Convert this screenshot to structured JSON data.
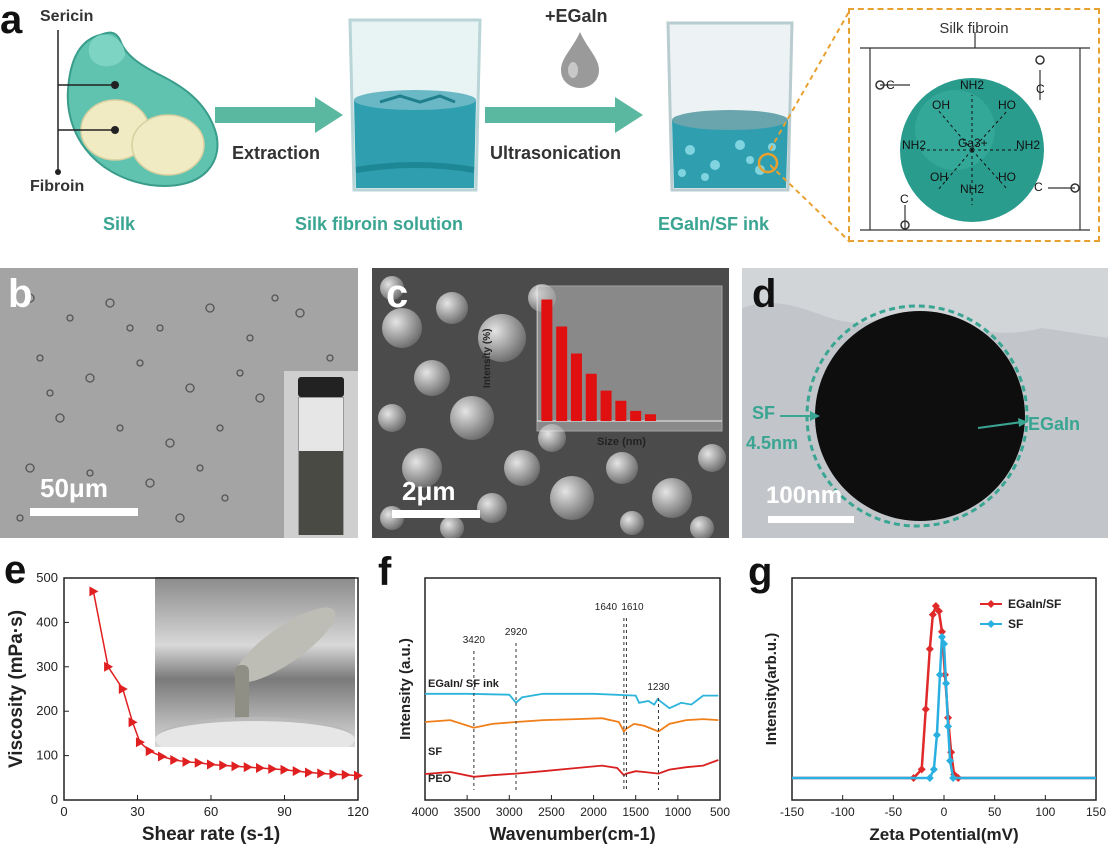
{
  "panel_a": {
    "label": "a",
    "silk_labels": {
      "sericin": "Sericin",
      "fibroin": "Fibroin",
      "silk": "Silk"
    },
    "steps": {
      "extraction": "Extraction",
      "ultrasonication": "Ultrasonication",
      "additive": "+EGaIn"
    },
    "captions": {
      "solution": "Silk fibroin solution",
      "ink": "EGaIn/SF ink"
    },
    "inset": {
      "title": "Silk fibroin",
      "groups": [
        "NH2",
        "OH",
        "HO",
        "NH2",
        "NH2",
        "OH",
        "NH2",
        "HO"
      ],
      "center": "Ga3+",
      "oxygen": "O",
      "carbon": "C"
    },
    "colors": {
      "teal": "#3aa592",
      "arrow": "#5ab7a0",
      "sphere": "#2a9c8d",
      "dash_orange": "#e8a030"
    }
  },
  "panel_b": {
    "label": "b",
    "scale": "50μm"
  },
  "panel_c": {
    "label": "c",
    "scale": "2μm",
    "inset_ylabel": "Intensity (%)",
    "inset_xlabel": "Size (nm)",
    "inset_bar_color": "#e01010"
  },
  "panel_d": {
    "label": "d",
    "scale": "100nm",
    "sf": "SF",
    "thickness": "4.5nm",
    "egain": "EGaIn"
  },
  "panel_e": {
    "label": "e"
  },
  "panel_f": {
    "label": "f",
    "legend": [
      "EGaIn/ SF ink",
      "SF",
      "PEO"
    ],
    "peaks": [
      "3420",
      "2920",
      "1640",
      "1610",
      "1230"
    ]
  },
  "panel_g": {
    "label": "g"
  },
  "chart_data": [
    {
      "type": "bar",
      "panel": "c-inset",
      "title": "",
      "xlabel": "Size (nm)",
      "ylabel": "Intensity (%)",
      "ylim": [
        0,
        40
      ],
      "xlim": [
        0,
        1500
      ],
      "x": [
        80,
        200,
        320,
        440,
        560,
        680,
        800,
        920
      ],
      "values": [
        36,
        28,
        20,
        14,
        9,
        6,
        3,
        2
      ]
    },
    {
      "type": "line",
      "panel": "e",
      "title": "",
      "xlabel": "Shear rate (s-1)",
      "ylabel": "Viscosity (mPa·s)",
      "xlim": [
        0,
        120
      ],
      "ylim": [
        0,
        500
      ],
      "xticks": [
        "0",
        "30",
        "60",
        "90",
        "120"
      ],
      "yticks": [
        "0",
        "100",
        "200",
        "300",
        "400",
        "500"
      ],
      "series": [
        {
          "marker": "triangle-right",
          "color": "#e02020",
          "x": [
            12,
            18,
            24,
            28,
            31,
            35,
            40,
            45,
            50,
            55,
            60,
            65,
            70,
            75,
            80,
            85,
            90,
            95,
            100,
            105,
            110,
            115,
            120
          ],
          "y": [
            470,
            300,
            250,
            175,
            130,
            110,
            98,
            90,
            86,
            84,
            80,
            78,
            76,
            74,
            72,
            70,
            68,
            65,
            62,
            60,
            58,
            57,
            55
          ]
        }
      ]
    },
    {
      "type": "line",
      "panel": "f",
      "title": "",
      "xlabel": "Wavenumber(cm-1)",
      "ylabel": "Intensity (a.u.)",
      "xlim": [
        4000,
        500
      ],
      "xticks": [
        "4000",
        "3500",
        "3000",
        "2500",
        "2000",
        "1500",
        "1000",
        "500"
      ],
      "series": [
        {
          "name": "EGaIn/ SF ink",
          "color": "#d92020",
          "x": [
            4000,
            3700,
            3420,
            3200,
            2920,
            2600,
            2200,
            1900,
            1720,
            1640,
            1610,
            1500,
            1400,
            1230,
            1100,
            900,
            700,
            520
          ],
          "y": [
            0.65,
            0.7,
            0.58,
            0.62,
            0.66,
            0.72,
            0.8,
            0.86,
            0.8,
            0.62,
            0.66,
            0.72,
            0.7,
            0.66,
            0.76,
            0.82,
            0.86,
            1.0
          ]
        },
        {
          "name": "SF",
          "color": "#f07f1a",
          "x": [
            4000,
            3700,
            3420,
            3200,
            2920,
            2600,
            2200,
            1900,
            1700,
            1640,
            1610,
            1520,
            1400,
            1230,
            1100,
            900,
            700,
            520
          ],
          "y": [
            0.4,
            0.42,
            0.34,
            0.38,
            0.4,
            0.42,
            0.43,
            0.44,
            0.4,
            0.3,
            0.33,
            0.38,
            0.36,
            0.3,
            0.38,
            0.42,
            0.43,
            0.42
          ]
        },
        {
          "name": "PEO",
          "color": "#2cb5da",
          "x": [
            4000,
            3500,
            3000,
            2920,
            2850,
            2600,
            2000,
            1500,
            1460,
            1350,
            1280,
            1240,
            1100,
            960,
            840,
            700,
            520
          ],
          "y": [
            0.18,
            0.18,
            0.17,
            0.08,
            0.14,
            0.18,
            0.18,
            0.16,
            0.08,
            0.1,
            0.06,
            0.12,
            0.02,
            0.08,
            0.06,
            0.16,
            0.16
          ]
        }
      ]
    },
    {
      "type": "line",
      "panel": "g",
      "title": "",
      "xlabel": "Zeta Potential(mV)",
      "ylabel": "Intensity(arb.u.)",
      "xlim": [
        -150,
        150
      ],
      "xticks": [
        "-150",
        "-100",
        "-50",
        "0",
        "50",
        "100",
        "150"
      ],
      "legend": "top-right",
      "series": [
        {
          "name": "EGaIn/SF",
          "color": "#e02a2a",
          "x": [
            -150,
            -30,
            -22,
            -18,
            -14,
            -11,
            -8,
            -5,
            -2,
            1,
            4,
            7,
            10,
            14,
            150
          ],
          "y": [
            0,
            0,
            0.05,
            0.4,
            0.75,
            0.95,
            1.0,
            0.97,
            0.85,
            0.6,
            0.35,
            0.15,
            0.02,
            0,
            0
          ]
        },
        {
          "name": "SF",
          "color": "#2ab0e0",
          "x": [
            -150,
            -14,
            -10,
            -7,
            -4,
            -2,
            0,
            2,
            4,
            6,
            9,
            150
          ],
          "y": [
            0,
            0,
            0.05,
            0.25,
            0.6,
            0.82,
            0.78,
            0.55,
            0.3,
            0.1,
            0,
            0
          ]
        }
      ]
    }
  ]
}
